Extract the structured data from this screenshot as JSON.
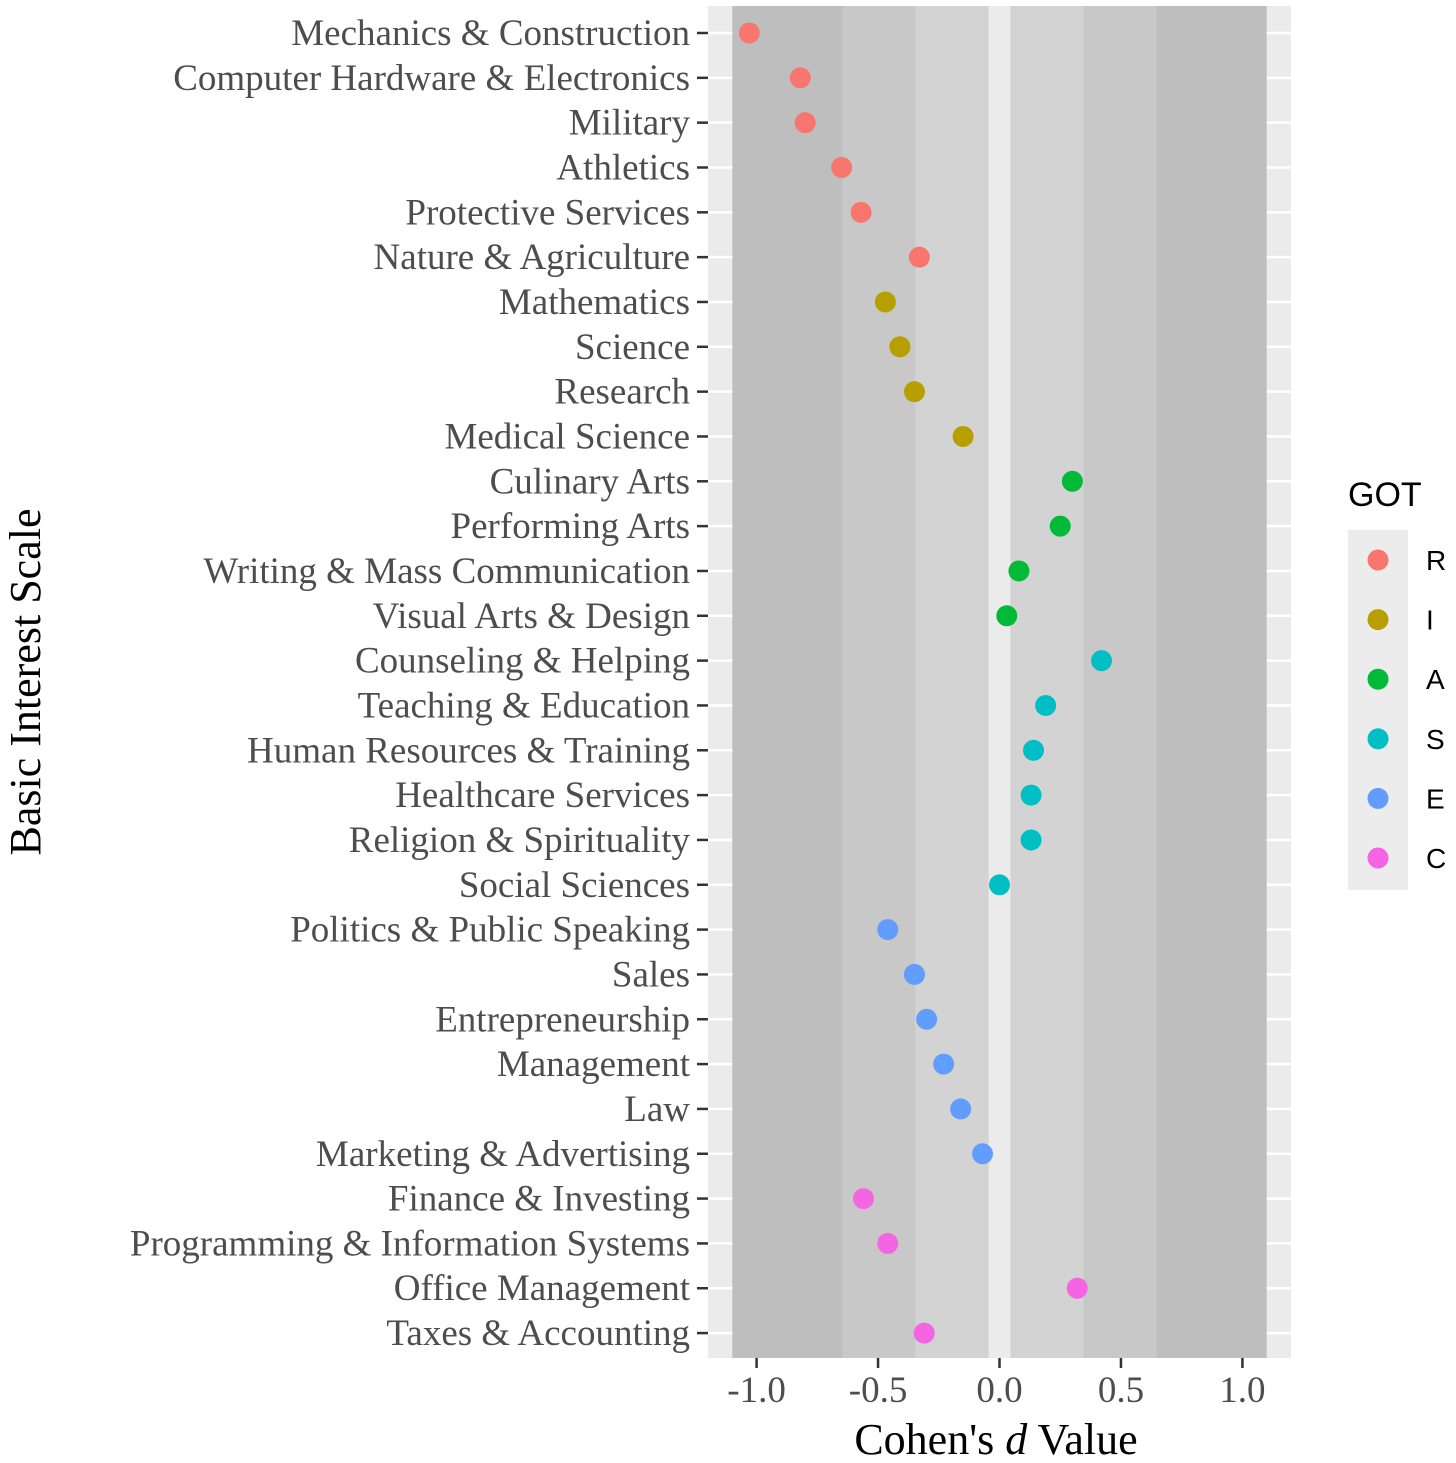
{
  "chart_data": {
    "type": "scatter",
    "xlabel_prefix": "Cohen's ",
    "xlabel_italic": "d",
    "xlabel_suffix": " Value",
    "ylabel": "Basic Interest Scale",
    "xlim": [
      -1.2,
      1.2
    ],
    "x_ticks": [
      -1.0,
      -0.5,
      0.0,
      0.5,
      1.0
    ],
    "x_tick_labels": [
      "-1.0",
      "-0.5",
      "0.0",
      "0.5",
      "1.0"
    ],
    "bands": [
      {
        "from": -1.1,
        "to": -0.645,
        "color": "#bebebe"
      },
      {
        "from": -0.645,
        "to": -0.345,
        "color": "#c8c8c8"
      },
      {
        "from": -0.345,
        "to": -0.045,
        "color": "#d3d3d3"
      },
      {
        "from": 0.045,
        "to": 0.345,
        "color": "#d3d3d3"
      },
      {
        "from": 0.345,
        "to": 0.645,
        "color": "#c8c8c8"
      },
      {
        "from": 0.645,
        "to": 1.1,
        "color": "#bebebe"
      }
    ],
    "legend": {
      "title": "GOT",
      "position": "right",
      "entries": [
        {
          "key": "R",
          "color": "#F8766D"
        },
        {
          "key": "I",
          "color": "#B79F00"
        },
        {
          "key": "A",
          "color": "#00BA38"
        },
        {
          "key": "S",
          "color": "#00BFC4"
        },
        {
          "key": "E",
          "color": "#619CFF"
        },
        {
          "key": "C",
          "color": "#F564E3"
        }
      ]
    },
    "points": [
      {
        "label": "Mechanics & Construction",
        "value": -1.03,
        "got": "R"
      },
      {
        "label": "Computer Hardware & Electronics",
        "value": -0.82,
        "got": "R"
      },
      {
        "label": "Military",
        "value": -0.8,
        "got": "R"
      },
      {
        "label": "Athletics",
        "value": -0.65,
        "got": "R"
      },
      {
        "label": "Protective Services",
        "value": -0.57,
        "got": "R"
      },
      {
        "label": "Nature & Agriculture",
        "value": -0.33,
        "got": "R"
      },
      {
        "label": "Mathematics",
        "value": -0.47,
        "got": "I"
      },
      {
        "label": "Science",
        "value": -0.41,
        "got": "I"
      },
      {
        "label": "Research",
        "value": -0.35,
        "got": "I"
      },
      {
        "label": "Medical Science",
        "value": -0.15,
        "got": "I"
      },
      {
        "label": "Culinary Arts",
        "value": 0.3,
        "got": "A"
      },
      {
        "label": "Performing Arts",
        "value": 0.25,
        "got": "A"
      },
      {
        "label": "Writing & Mass Communication",
        "value": 0.08,
        "got": "A"
      },
      {
        "label": "Visual Arts & Design",
        "value": 0.03,
        "got": "A"
      },
      {
        "label": "Counseling & Helping",
        "value": 0.42,
        "got": "S"
      },
      {
        "label": "Teaching & Education",
        "value": 0.19,
        "got": "S"
      },
      {
        "label": "Human Resources & Training",
        "value": 0.14,
        "got": "S"
      },
      {
        "label": "Healthcare Services",
        "value": 0.13,
        "got": "S"
      },
      {
        "label": "Religion & Spirituality",
        "value": 0.13,
        "got": "S"
      },
      {
        "label": "Social Sciences",
        "value": 0.0,
        "got": "S"
      },
      {
        "label": "Politics & Public Speaking",
        "value": -0.46,
        "got": "E"
      },
      {
        "label": "Sales",
        "value": -0.35,
        "got": "E"
      },
      {
        "label": "Entrepreneurship",
        "value": -0.3,
        "got": "E"
      },
      {
        "label": "Management",
        "value": -0.23,
        "got": "E"
      },
      {
        "label": "Law",
        "value": -0.16,
        "got": "E"
      },
      {
        "label": "Marketing & Advertising",
        "value": -0.07,
        "got": "E"
      },
      {
        "label": "Finance & Investing",
        "value": -0.56,
        "got": "C"
      },
      {
        "label": "Programming & Information Systems",
        "value": -0.46,
        "got": "C"
      },
      {
        "label": "Office Management",
        "value": 0.32,
        "got": "C"
      },
      {
        "label": "Taxes & Accounting",
        "value": -0.31,
        "got": "C"
      }
    ]
  }
}
